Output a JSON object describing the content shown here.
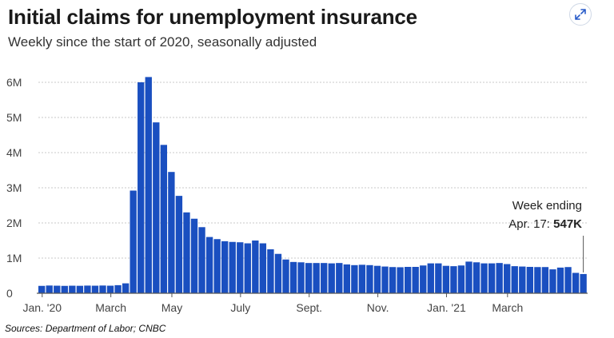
{
  "header": {
    "title": "Initial claims for unemployment insurance",
    "subtitle": "Weekly since the start of 2020, seasonally adjusted"
  },
  "footer": {
    "source": "Sources: Department of Labor; CNBC"
  },
  "expand_icon": "expand-arrows-icon",
  "colors": {
    "bar": "#1a4fc0",
    "grid": "#c9c9c9",
    "axis": "#555555"
  },
  "chart_data": {
    "type": "bar",
    "title": "Initial claims for unemployment insurance",
    "subtitle": "Weekly since the start of 2020, seasonally adjusted",
    "xlabel": "",
    "ylabel": "",
    "ylim": [
      0,
      6500000
    ],
    "y_ticks": [
      0,
      1000000,
      2000000,
      3000000,
      4000000,
      5000000,
      6000000
    ],
    "y_tick_labels": [
      "0",
      "1M",
      "2M",
      "3M",
      "4M",
      "5M",
      "6M"
    ],
    "x_tick_labels": [
      "Jan. '20",
      "March",
      "May",
      "July",
      "Sept.",
      "Nov.",
      "Jan. '21",
      "March"
    ],
    "x_tick_weeks": [
      0,
      9,
      17,
      26,
      35,
      44,
      53,
      61
    ],
    "grid": true,
    "values": [
      210000,
      220000,
      215000,
      210000,
      215000,
      212000,
      218000,
      215000,
      220000,
      215000,
      230000,
      282000,
      2920000,
      6000000,
      6150000,
      4860000,
      4220000,
      3450000,
      2770000,
      2300000,
      2120000,
      1880000,
      1600000,
      1540000,
      1480000,
      1460000,
      1450000,
      1420000,
      1500000,
      1420000,
      1250000,
      1120000,
      960000,
      890000,
      880000,
      860000,
      860000,
      860000,
      850000,
      860000,
      820000,
      800000,
      810000,
      800000,
      780000,
      760000,
      745000,
      740000,
      750000,
      750000,
      790000,
      850000,
      850000,
      780000,
      770000,
      790000,
      900000,
      880000,
      850000,
      850000,
      860000,
      830000,
      770000,
      760000,
      750000,
      745000,
      745000,
      680000,
      730000,
      745000,
      580000,
      547000
    ],
    "annotation": {
      "line1": "Week ending",
      "line2_prefix": "Apr. 17: ",
      "line2_value": "547K",
      "week_index": 71
    }
  }
}
